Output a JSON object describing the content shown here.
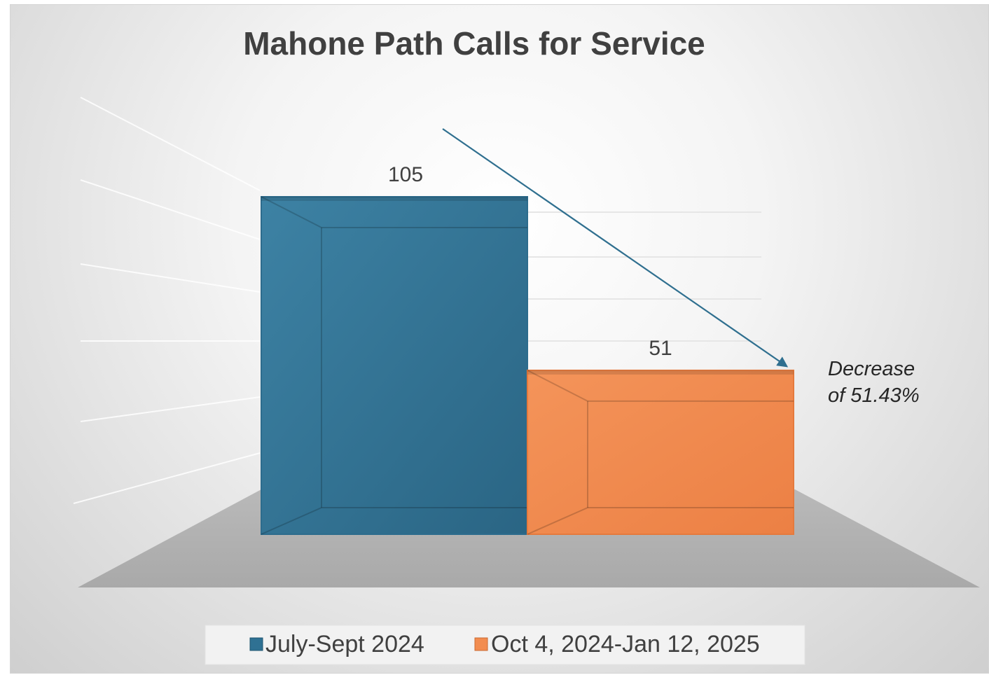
{
  "chart_data": {
    "type": "bar",
    "title": "Mahone Path Calls for Service",
    "categories": [
      "July-Sept 2024",
      "Oct 4, 2024-Jan 12, 2025"
    ],
    "values": [
      105,
      51
    ],
    "data_labels": [
      "105",
      "51"
    ],
    "ylim": [
      0,
      105
    ],
    "grid": false,
    "three_d": true,
    "legend": {
      "position": "bottom",
      "entries": [
        "July-Sept 2024",
        "Oct 4, 2024-Jan 12, 2025"
      ]
    },
    "colors": [
      "#2f7193",
      "#f28c4f"
    ],
    "annotation": {
      "lines": [
        "Decrease",
        "of 51.43%"
      ],
      "arrow_color": "#2f6f8f"
    }
  }
}
